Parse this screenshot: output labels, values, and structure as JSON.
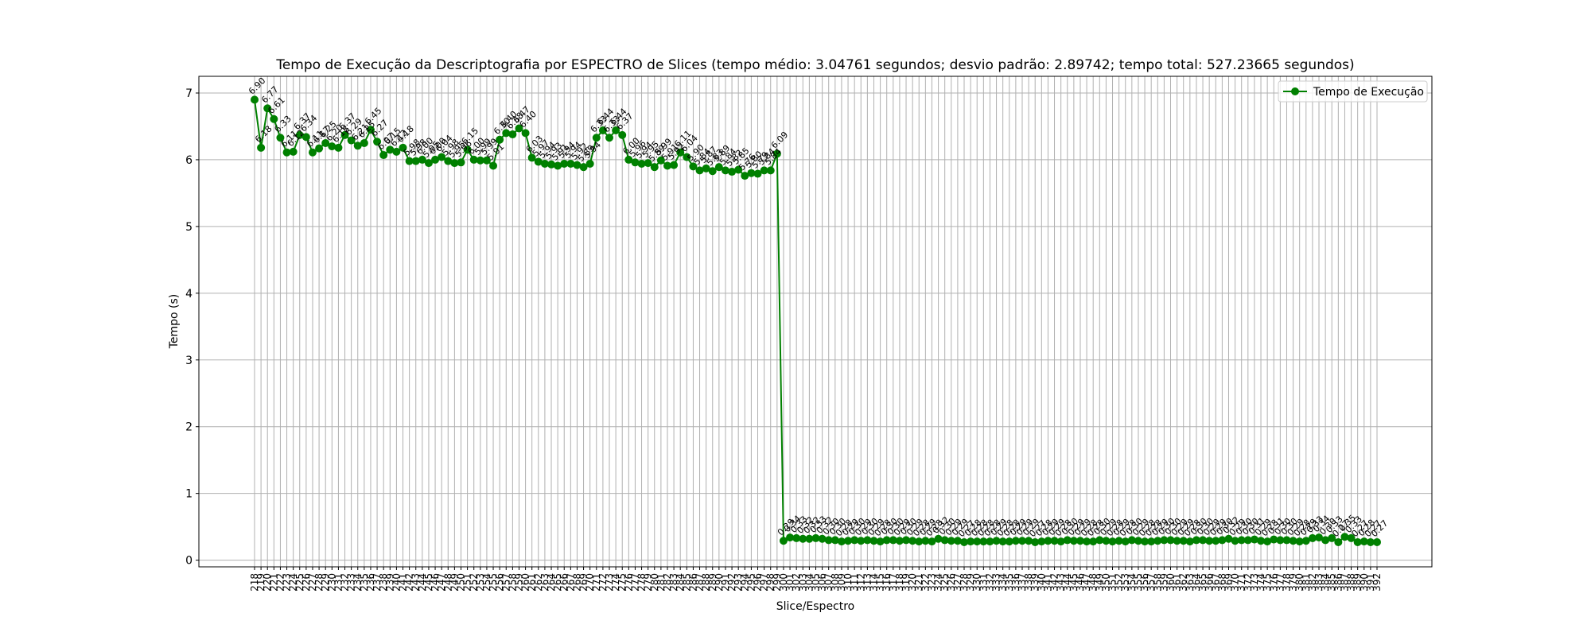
{
  "chart_data": {
    "type": "line",
    "title": "Tempo de Execução da Descriptografia por ESPECTRO de Slices (tempo médio: 3.04761 segundos; desvio padrão: 2.89742; tempo total: 527.23665 segundos)",
    "xlabel": "Slice/Espectro",
    "ylabel": "Tempo (s)",
    "ylim": [
      -0.1,
      7.25
    ],
    "yticks": [
      0,
      1,
      2,
      3,
      4,
      5,
      6,
      7
    ],
    "grid": true,
    "legend_position": "top-right",
    "series": [
      {
        "name": "Tempo de Execução",
        "color": "#008000",
        "marker": "circle",
        "x_start": 218,
        "x_end": 390,
        "values": [
          6.9,
          6.18,
          6.77,
          6.61,
          6.33,
          6.11,
          6.12,
          6.37,
          6.34,
          6.11,
          6.17,
          6.25,
          6.2,
          6.18,
          6.37,
          6.29,
          6.21,
          6.25,
          6.45,
          6.27,
          6.07,
          6.15,
          6.12,
          6.18,
          5.98,
          5.98,
          6.0,
          5.95,
          6.0,
          6.04,
          5.98,
          5.95,
          5.96,
          6.15,
          6.0,
          5.99,
          5.99,
          5.91,
          6.3,
          6.4,
          6.38,
          6.47,
          6.4,
          6.03,
          5.97,
          5.94,
          5.93,
          5.91,
          5.94,
          5.94,
          5.92,
          5.89,
          5.94,
          6.33,
          6.44,
          6.33,
          6.44,
          6.37,
          6.0,
          5.96,
          5.94,
          5.95,
          5.89,
          5.99,
          5.91,
          5.92,
          6.11,
          6.04,
          5.9,
          5.84,
          5.87,
          5.83,
          5.89,
          5.84,
          5.82,
          5.85,
          5.76,
          5.8,
          5.79,
          5.84,
          5.84,
          6.09,
          0.29,
          0.34,
          0.33,
          0.32,
          0.32,
          0.33,
          0.32,
          0.3,
          0.3,
          0.28,
          0.29,
          0.3,
          0.29,
          0.3,
          0.29,
          0.28,
          0.3,
          0.3,
          0.29,
          0.3,
          0.29,
          0.28,
          0.29,
          0.28,
          0.32,
          0.3,
          0.29,
          0.29,
          0.27,
          0.28,
          0.28,
          0.28,
          0.28,
          0.29,
          0.28,
          0.28,
          0.29,
          0.29,
          0.29,
          0.27,
          0.28,
          0.29,
          0.29,
          0.28,
          0.3,
          0.29,
          0.29,
          0.28,
          0.28,
          0.3,
          0.29,
          0.28,
          0.29,
          0.28,
          0.3,
          0.29,
          0.28,
          0.28,
          0.29,
          0.3,
          0.3,
          0.29,
          0.29,
          0.28,
          0.3,
          0.3,
          0.29,
          0.29,
          0.3,
          0.32,
          0.29,
          0.3,
          0.3,
          0.31,
          0.29,
          0.28,
          0.31,
          0.3,
          0.3,
          0.29,
          0.28,
          0.29,
          0.33,
          0.34,
          0.3,
          0.33,
          0.27,
          0.35,
          0.33,
          0.27,
          0.28,
          0.27,
          0.27
        ]
      }
    ],
    "data_labels": [
      "6.90",
      "6.18",
      "6.77",
      "6.61",
      "6.33",
      "6.11",
      "6.12",
      "6.37",
      "6.34",
      "6.11",
      "6.17",
      "6.25",
      "6.20",
      "6.18",
      "6.37",
      "6.29",
      "6.21",
      "6.25",
      "6.45",
      "6.27",
      "6.07",
      "6.15",
      "6.12",
      "6.18",
      "5.98",
      "5.98",
      "6.00",
      "5.95",
      "6.00",
      "6.04",
      "5.98",
      "5.95",
      "5.96",
      "6.15",
      "6.00",
      "5.99",
      "5.99",
      "5.91",
      "6.30",
      "6.40",
      "6.38",
      "6.47",
      "6.40",
      "6.03",
      "5.97",
      "5.94",
      "5.93",
      "5.91",
      "5.94",
      "5.94",
      "5.92",
      "5.89",
      "5.94",
      "6.33",
      "6.44",
      "6.33",
      "6.44",
      "6.37",
      "6.00",
      "5.96",
      "5.94",
      "5.95",
      "5.89",
      "5.99",
      "5.91",
      "5.92",
      "6.11",
      "6.04",
      "5.90",
      "5.84",
      "5.87",
      "5.83",
      "5.89",
      "5.84",
      "5.82",
      "5.85",
      "5.76",
      "5.80",
      "5.79",
      "5.84",
      "5.84",
      "6.09",
      "0.29",
      "0.34",
      "0.33",
      "0.32",
      "0.32",
      "0.33",
      "0.32",
      "0.30",
      "0.30",
      "0.28",
      "0.29",
      "0.30",
      "0.29",
      "0.30",
      "0.29",
      "0.28",
      "0.30",
      "0.30",
      "0.29",
      "0.30",
      "0.29",
      "0.28",
      "0.29",
      "0.28",
      "0.32",
      "0.30",
      "0.29",
      "0.29",
      "0.27",
      "0.28",
      "0.28",
      "0.28",
      "0.28",
      "0.29",
      "0.28",
      "0.28",
      "0.29",
      "0.29",
      "0.29",
      "0.27",
      "0.28",
      "0.29",
      "0.29",
      "0.28",
      "0.30",
      "0.29",
      "0.29",
      "0.28",
      "0.28",
      "0.30",
      "0.29",
      "0.28",
      "0.29",
      "0.28",
      "0.30",
      "0.29",
      "0.28",
      "0.28",
      "0.29",
      "0.30",
      "0.30",
      "0.29",
      "0.29",
      "0.28",
      "0.30",
      "0.30",
      "0.29",
      "0.29",
      "0.30",
      "0.32",
      "0.29",
      "0.30",
      "0.30",
      "0.31",
      "0.29",
      "0.28",
      "0.31",
      "0.30",
      "0.30",
      "0.29",
      "0.28",
      "0.29",
      "0.33",
      "0.34",
      "0.30",
      "0.33",
      "0.27",
      "0.35",
      "0.33",
      "0.27",
      "0.28",
      "0.27",
      "0.27"
    ]
  }
}
